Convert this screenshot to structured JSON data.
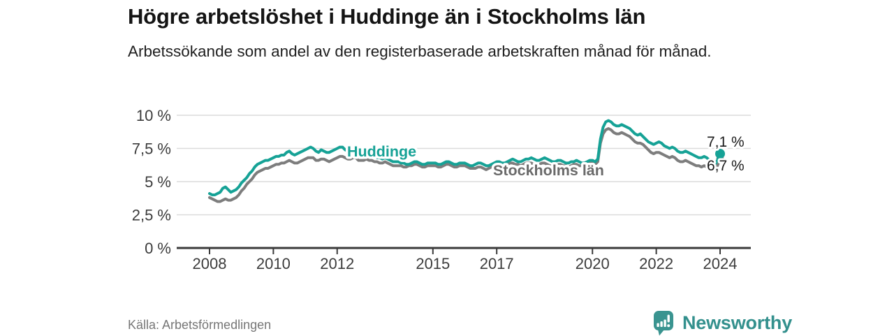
{
  "header": {
    "title": "Högre arbetslöshet i Huddinge än i Stockholms län",
    "subtitle": "Arbetssökande som andel av den registerbaserade arbetskraften månad för månad."
  },
  "footer": {
    "source": "Källa: Arbetsförmedlingen",
    "brand": "Newsworthy"
  },
  "colors": {
    "huddinge": "#16a296",
    "stockholm": "#7d7d7d",
    "stockholm_label": "#6a6a6a",
    "grid": "#dcdcdc",
    "axis": "#3a3a3a",
    "value_label": "#1a1a1a",
    "brand_teal": "#33908d"
  },
  "chart_data": {
    "type": "line",
    "unit": "%",
    "x_start": "2008-01",
    "x_end": "2024-01",
    "frequency": "monthly",
    "ylim": [
      0,
      10
    ],
    "grid": true,
    "x_ticks": [
      2008,
      2010,
      2012,
      2015,
      2017,
      2020,
      2022,
      2024
    ],
    "y_ticks": [
      {
        "value": 0,
        "label": "0 %"
      },
      {
        "value": 2.5,
        "label": "2,5 %"
      },
      {
        "value": 5,
        "label": "5 %"
      },
      {
        "value": 7.5,
        "label": "7,5 %"
      },
      {
        "value": 10,
        "label": "10 %"
      }
    ],
    "series": [
      {
        "name": "Huddinge",
        "color": "#16a296",
        "label_color": "#16a296",
        "end_label": "7,1 %",
        "end_value": 7.1,
        "values": [
          4.1,
          4.0,
          4.0,
          4.1,
          4.2,
          4.5,
          4.6,
          4.4,
          4.2,
          4.3,
          4.4,
          4.6,
          4.9,
          5.1,
          5.3,
          5.6,
          5.8,
          6.1,
          6.3,
          6.4,
          6.5,
          6.6,
          6.6,
          6.7,
          6.8,
          6.9,
          6.9,
          7.0,
          7.0,
          7.2,
          7.3,
          7.1,
          7.0,
          7.1,
          7.2,
          7.3,
          7.4,
          7.5,
          7.6,
          7.5,
          7.3,
          7.2,
          7.4,
          7.3,
          7.2,
          7.2,
          7.3,
          7.4,
          7.5,
          7.6,
          7.6,
          7.4,
          7.3,
          7.2,
          7.4,
          7.3,
          7.1,
          7.0,
          7.1,
          7.1,
          7.0,
          7.0,
          6.9,
          6.8,
          6.8,
          6.7,
          6.8,
          6.7,
          6.6,
          6.5,
          6.5,
          6.5,
          6.4,
          6.4,
          6.3,
          6.3,
          6.4,
          6.5,
          6.5,
          6.4,
          6.3,
          6.3,
          6.4,
          6.4,
          6.4,
          6.4,
          6.3,
          6.3,
          6.4,
          6.5,
          6.5,
          6.4,
          6.3,
          6.3,
          6.4,
          6.4,
          6.4,
          6.3,
          6.2,
          6.2,
          6.3,
          6.4,
          6.4,
          6.3,
          6.2,
          6.2,
          6.3,
          6.4,
          6.5,
          6.5,
          6.4,
          6.4,
          6.5,
          6.6,
          6.7,
          6.6,
          6.5,
          6.5,
          6.6,
          6.7,
          6.7,
          6.8,
          6.7,
          6.6,
          6.6,
          6.7,
          6.8,
          6.7,
          6.6,
          6.5,
          6.5,
          6.6,
          6.6,
          6.5,
          6.4,
          6.4,
          6.5,
          6.5,
          6.6,
          6.5,
          6.4,
          6.4,
          6.5,
          6.6,
          6.6,
          6.5,
          6.7,
          8.2,
          9.1,
          9.5,
          9.6,
          9.5,
          9.3,
          9.2,
          9.2,
          9.3,
          9.2,
          9.1,
          9.0,
          8.8,
          8.6,
          8.5,
          8.6,
          8.4,
          8.2,
          8.0,
          7.9,
          7.8,
          7.9,
          8.0,
          7.9,
          7.7,
          7.6,
          7.5,
          7.6,
          7.5,
          7.3,
          7.2,
          7.2,
          7.3,
          7.2,
          7.1,
          7.0,
          6.9,
          6.8,
          6.8,
          6.9,
          6.8,
          6.6,
          6.4,
          6.3,
          6.6,
          7.1
        ]
      },
      {
        "name": "Stockholms län",
        "color": "#7d7d7d",
        "label_color": "#6a6a6a",
        "end_label": "6,7 %",
        "end_value": 6.7,
        "values": [
          3.8,
          3.7,
          3.6,
          3.5,
          3.5,
          3.6,
          3.7,
          3.6,
          3.6,
          3.7,
          3.8,
          4.0,
          4.3,
          4.5,
          4.8,
          5.0,
          5.2,
          5.5,
          5.7,
          5.8,
          5.9,
          6.0,
          6.0,
          6.1,
          6.2,
          6.3,
          6.3,
          6.4,
          6.4,
          6.5,
          6.6,
          6.5,
          6.4,
          6.4,
          6.5,
          6.6,
          6.7,
          6.8,
          6.8,
          6.8,
          6.6,
          6.6,
          6.7,
          6.7,
          6.6,
          6.5,
          6.6,
          6.7,
          6.8,
          6.9,
          6.9,
          6.8,
          6.7,
          6.7,
          6.8,
          6.8,
          6.6,
          6.6,
          6.6,
          6.7,
          6.6,
          6.6,
          6.5,
          6.5,
          6.4,
          6.4,
          6.5,
          6.4,
          6.3,
          6.2,
          6.2,
          6.2,
          6.2,
          6.1,
          6.1,
          6.2,
          6.2,
          6.3,
          6.3,
          6.2,
          6.1,
          6.1,
          6.2,
          6.2,
          6.2,
          6.2,
          6.1,
          6.1,
          6.2,
          6.3,
          6.3,
          6.2,
          6.1,
          6.1,
          6.2,
          6.2,
          6.2,
          6.1,
          6.0,
          6.0,
          6.0,
          6.1,
          6.1,
          6.0,
          5.9,
          6.0,
          6.1,
          6.2,
          6.3,
          6.2,
          6.2,
          6.2,
          6.3,
          6.4,
          6.4,
          6.3,
          6.3,
          6.2,
          6.3,
          6.4,
          6.4,
          6.4,
          6.3,
          6.3,
          6.3,
          6.4,
          6.4,
          6.3,
          6.2,
          6.2,
          6.2,
          6.3,
          6.3,
          6.2,
          6.2,
          6.1,
          6.2,
          6.3,
          6.3,
          6.2,
          6.2,
          6.2,
          6.3,
          6.4,
          6.4,
          6.3,
          6.5,
          7.9,
          8.6,
          8.9,
          9.0,
          8.9,
          8.7,
          8.6,
          8.6,
          8.7,
          8.6,
          8.5,
          8.4,
          8.2,
          8.0,
          7.9,
          7.9,
          7.8,
          7.6,
          7.4,
          7.2,
          7.1,
          7.2,
          7.2,
          7.1,
          7.0,
          6.9,
          6.8,
          6.9,
          6.8,
          6.6,
          6.5,
          6.5,
          6.6,
          6.5,
          6.4,
          6.3,
          6.2,
          6.2,
          6.1,
          6.2,
          6.1,
          6.0,
          6.0,
          6.0,
          6.2,
          6.7
        ]
      }
    ]
  }
}
